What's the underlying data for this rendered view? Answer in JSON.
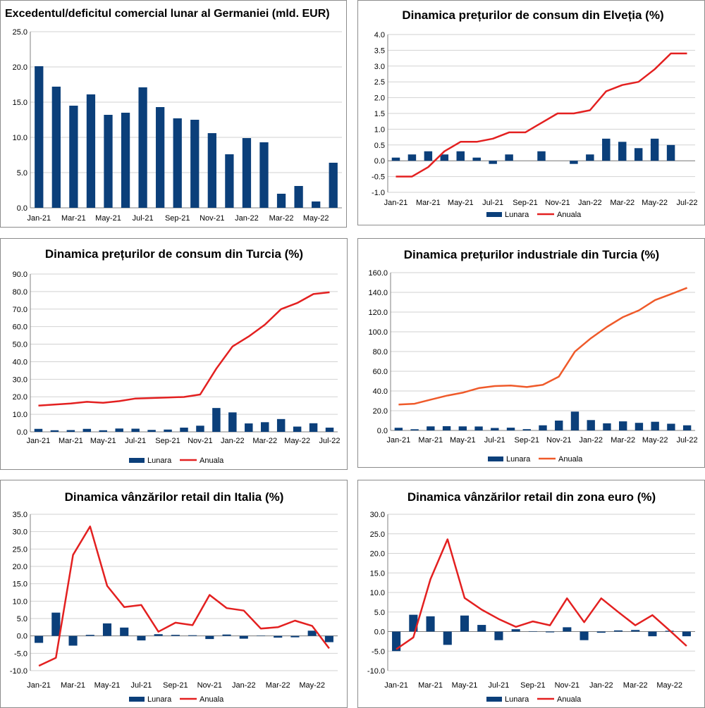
{
  "colors": {
    "bar": "#0b3f7a",
    "line": "#e32020",
    "line_orange": "#ef5a2a",
    "grid": "#d2d2d2",
    "axis": "#808080"
  },
  "chart_data": [
    {
      "type": "bar",
      "title": "Excedentul/deficitul comercial lunar al Germaniei (mld. EUR)",
      "categories": [
        "Jan-21",
        "Feb-21",
        "Mar-21",
        "Apr-21",
        "May-21",
        "Jun-21",
        "Jul-21",
        "Aug-21",
        "Sep-21",
        "Oct-21",
        "Nov-21",
        "Dec-21",
        "Jan-22",
        "Feb-22",
        "Mar-22",
        "Apr-22",
        "May-22",
        "Jun-22"
      ],
      "x_tick_labels": [
        "Jan-21",
        "Mar-21",
        "May-21",
        "Jul-21",
        "Sep-21",
        "Nov-21",
        "Jan-22",
        "Mar-22",
        "May-22"
      ],
      "series": [
        {
          "name": "",
          "kind": "bar",
          "values": [
            20.1,
            17.2,
            14.5,
            16.1,
            13.2,
            13.5,
            17.1,
            14.3,
            12.7,
            12.5,
            10.6,
            7.6,
            9.9,
            9.3,
            2.0,
            3.1,
            0.9,
            6.4
          ]
        }
      ],
      "ylim": [
        0,
        25
      ],
      "y_tick_labels": [
        "0.0",
        "5.0",
        "10.0",
        "15.0",
        "20.0",
        "25.0"
      ],
      "legend": []
    },
    {
      "type": "bar+line",
      "title": "Dinamica prețurilor de consum din Elveția (%)",
      "categories": [
        "Jan-21",
        "Feb-21",
        "Mar-21",
        "Apr-21",
        "May-21",
        "Jun-21",
        "Jul-21",
        "Aug-21",
        "Sep-21",
        "Oct-21",
        "Nov-21",
        "Dec-21",
        "Jan-22",
        "Feb-22",
        "Mar-22",
        "Apr-22",
        "May-22",
        "Jun-22",
        "Jul-22"
      ],
      "x_tick_labels": [
        "Jan-21",
        "Mar-21",
        "May-21",
        "Jul-21",
        "Sep-21",
        "Nov-21",
        "Jan-22",
        "Mar-22",
        "May-22",
        "Jul-22"
      ],
      "series": [
        {
          "name": "Lunara",
          "kind": "bar",
          "values": [
            0.1,
            0.2,
            0.3,
            0.2,
            0.3,
            0.1,
            -0.1,
            0.2,
            0.0,
            0.3,
            0.0,
            -0.1,
            0.2,
            0.7,
            0.6,
            0.4,
            0.7,
            0.5,
            0.0
          ]
        },
        {
          "name": "Anuala",
          "kind": "line",
          "values": [
            -0.5,
            -0.5,
            -0.2,
            0.3,
            0.6,
            0.6,
            0.7,
            0.9,
            0.9,
            1.2,
            1.5,
            1.5,
            1.6,
            2.2,
            2.4,
            2.5,
            2.9,
            3.4,
            3.4
          ]
        }
      ],
      "ylim": [
        -1,
        4
      ],
      "y_tick_labels": [
        "-1.0",
        "-0.5",
        "0.0",
        "0.5",
        "1.0",
        "1.5",
        "2.0",
        "2.5",
        "3.0",
        "3.5",
        "4.0"
      ],
      "legend": [
        "Lunara",
        "Anuala"
      ]
    },
    {
      "type": "bar+line",
      "title": "Dinamica prețurilor de consum din Turcia (%)",
      "categories": [
        "Jan-21",
        "Feb-21",
        "Mar-21",
        "Apr-21",
        "May-21",
        "Jun-21",
        "Jul-21",
        "Aug-21",
        "Sep-21",
        "Oct-21",
        "Nov-21",
        "Dec-21",
        "Jan-22",
        "Feb-22",
        "Mar-22",
        "Apr-22",
        "May-22",
        "Jun-22",
        "Jul-22"
      ],
      "x_tick_labels": [
        "Jan-21",
        "Mar-21",
        "May-21",
        "Jul-21",
        "Sep-21",
        "Nov-21",
        "Jan-22",
        "Mar-22",
        "May-22",
        "Jul-22"
      ],
      "series": [
        {
          "name": "Lunara",
          "kind": "bar",
          "values": [
            1.7,
            0.9,
            1.0,
            1.7,
            0.9,
            1.9,
            1.8,
            1.1,
            1.3,
            2.4,
            3.5,
            13.6,
            11.1,
            4.8,
            5.5,
            7.3,
            3.0,
            4.9,
            2.4
          ]
        },
        {
          "name": "Anuala",
          "kind": "line",
          "values": [
            15.0,
            15.6,
            16.2,
            17.1,
            16.6,
            17.5,
            19.0,
            19.3,
            19.6,
            19.9,
            21.3,
            36.1,
            48.7,
            54.4,
            61.1,
            70.0,
            73.5,
            78.6,
            79.6
          ]
        }
      ],
      "ylim": [
        0,
        90
      ],
      "y_tick_labels": [
        "0.0",
        "10.0",
        "20.0",
        "30.0",
        "40.0",
        "50.0",
        "60.0",
        "70.0",
        "80.0",
        "90.0"
      ],
      "legend": [
        "Lunara",
        "Anuala"
      ]
    },
    {
      "type": "bar+line",
      "title": "Dinamica prețurilor industriale din Turcia (%)",
      "categories": [
        "Jan-21",
        "Feb-21",
        "Mar-21",
        "Apr-21",
        "May-21",
        "Jun-21",
        "Jul-21",
        "Aug-21",
        "Sep-21",
        "Oct-21",
        "Nov-21",
        "Dec-21",
        "Jan-22",
        "Feb-22",
        "Mar-22",
        "Apr-22",
        "May-22",
        "Jun-22",
        "Jul-22"
      ],
      "x_tick_labels": [
        "Jan-21",
        "Mar-21",
        "May-21",
        "Jul-21",
        "Sep-21",
        "Nov-21",
        "Jan-22",
        "Mar-22",
        "May-22",
        "Jul-22"
      ],
      "series": [
        {
          "name": "Lunara",
          "kind": "bar",
          "values": [
            2.7,
            1.2,
            4.1,
            4.3,
            4.1,
            4.0,
            2.5,
            2.8,
            1.3,
            5.2,
            9.99,
            19.1,
            10.5,
            7.2,
            9.2,
            7.7,
            8.8,
            6.8,
            5.2
          ]
        },
        {
          "name": "Anuala",
          "kind": "line",
          "values": [
            26.2,
            27.1,
            31.2,
            35.2,
            38.3,
            42.9,
            45.0,
            45.5,
            44.0,
            46.3,
            54.6,
            79.9,
            93.5,
            105.0,
            114.9,
            121.8,
            132.2,
            138.3,
            144.6
          ]
        }
      ],
      "ylim": [
        0,
        160
      ],
      "y_tick_labels": [
        "0.0",
        "20.0",
        "40.0",
        "60.0",
        "80.0",
        "100.0",
        "120.0",
        "140.0",
        "160.0"
      ],
      "legend": [
        "Lunara",
        "Anuala"
      ]
    },
    {
      "type": "bar+line",
      "title": "Dinamica vânzărilor retail din Italia (%)",
      "categories": [
        "Jan-21",
        "Feb-21",
        "Mar-21",
        "Apr-21",
        "May-21",
        "Jun-21",
        "Jul-21",
        "Aug-21",
        "Sep-21",
        "Oct-21",
        "Nov-21",
        "Dec-21",
        "Jan-22",
        "Feb-22",
        "Mar-22",
        "Apr-22",
        "May-22",
        "Jun-22"
      ],
      "x_tick_labels": [
        "Jan-21",
        "Mar-21",
        "May-21",
        "Jul-21",
        "Sep-21",
        "Nov-21",
        "Jan-22",
        "Mar-22",
        "May-22"
      ],
      "series": [
        {
          "name": "Lunara",
          "kind": "bar",
          "values": [
            -2.0,
            6.7,
            -2.8,
            0.3,
            3.6,
            2.4,
            -1.3,
            0.5,
            0.3,
            0.2,
            -0.9,
            0.4,
            -0.8,
            0.1,
            -0.5,
            -0.4,
            1.5,
            -1.8
          ]
        },
        {
          "name": "Anuala",
          "kind": "line",
          "values": [
            -8.6,
            -6.3,
            23.3,
            31.5,
            14.4,
            8.3,
            8.9,
            1.2,
            3.8,
            3.1,
            11.8,
            8.0,
            7.3,
            2.1,
            2.5,
            4.4,
            2.9,
            -3.6
          ]
        }
      ],
      "ylim": [
        -10,
        35
      ],
      "y_tick_labels": [
        "-10.0",
        "-5.0",
        "0.0",
        "5.0",
        "10.0",
        "15.0",
        "20.0",
        "25.0",
        "30.0",
        "35.0"
      ],
      "legend": [
        "Lunara",
        "Anuala"
      ]
    },
    {
      "type": "bar+line",
      "title": "Dinamica vânzărilor retail din zona euro (%)",
      "categories": [
        "Jan-21",
        "Feb-21",
        "Mar-21",
        "Apr-21",
        "May-21",
        "Jun-21",
        "Jul-21",
        "Aug-21",
        "Sep-21",
        "Oct-21",
        "Nov-21",
        "Dec-21",
        "Jan-22",
        "Feb-22",
        "Mar-22",
        "Apr-22",
        "May-22",
        "Jun-22"
      ],
      "x_tick_labels": [
        "Jan-21",
        "Mar-21",
        "May-21",
        "Jul-21",
        "Sep-21",
        "Nov-21",
        "Jan-22",
        "Mar-22",
        "May-22"
      ],
      "series": [
        {
          "name": "Lunara",
          "kind": "bar",
          "values": [
            -5.0,
            4.3,
            3.9,
            -3.4,
            4.1,
            1.7,
            -2.2,
            0.6,
            0.1,
            -0.2,
            1.1,
            -2.2,
            -0.3,
            0.3,
            0.4,
            -1.2,
            0.2,
            -1.2
          ]
        },
        {
          "name": "Anuala",
          "kind": "line",
          "values": [
            -4.5,
            -1.5,
            13.4,
            23.6,
            8.6,
            5.6,
            3.2,
            1.2,
            2.6,
            1.6,
            8.5,
            2.4,
            8.5,
            5.0,
            1.6,
            4.2,
            0.3,
            -3.7
          ]
        }
      ],
      "ylim": [
        -10,
        30
      ],
      "y_tick_labels": [
        "-10.0",
        "-5.0",
        "0.0",
        "5.0",
        "10.0",
        "15.0",
        "20.0",
        "25.0",
        "30.0"
      ],
      "legend": [
        "Lunara",
        "Anuala"
      ]
    }
  ]
}
